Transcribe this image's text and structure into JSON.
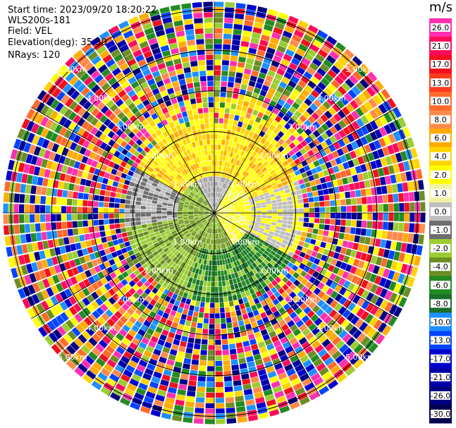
{
  "plot": {
    "start_time": "Start time: 2023/09/20 18:20:22",
    "instrument": "WLS200s-181",
    "field": "Field: VEL",
    "elevation": "Elevation(deg): 35.30",
    "nrays": "NRays: 120"
  },
  "range_rings": [
    {
      "label": "1.00km"
    },
    {
      "label": "2.00km"
    },
    {
      "label": "3.00km"
    },
    {
      "label": "4.00km"
    },
    {
      "label": "5.00km"
    }
  ],
  "colorbar": {
    "unit": "m/s",
    "levels": [
      "26.0",
      "21.0",
      "17.0",
      "13.0",
      "10.0",
      "8.0",
      "6.0",
      "4.0",
      "2.0",
      "1.0",
      "0.0",
      "-1.0",
      "-2.0",
      "-4.0",
      "-6.0",
      "-8.0",
      "-10.0",
      "-13.0",
      "-17.0",
      "-21.0",
      "-26.0",
      "-30.0"
    ],
    "colors": [
      "#ff2fb0",
      "#ff0a5a",
      "#f2101e",
      "#ff3b1e",
      "#ff6a2a",
      "#ff8a4a",
      "#ffab00",
      "#ffd400",
      "#ffff00",
      "#f4f4a0",
      "#bfbfbf",
      "#6e6e6e",
      "#9acd32",
      "#6b8e23",
      "#228b22",
      "#1a6e2a",
      "#1e90ff",
      "#0044ff",
      "#0000cc",
      "#0000aa",
      "#000080",
      "#000050"
    ]
  }
}
